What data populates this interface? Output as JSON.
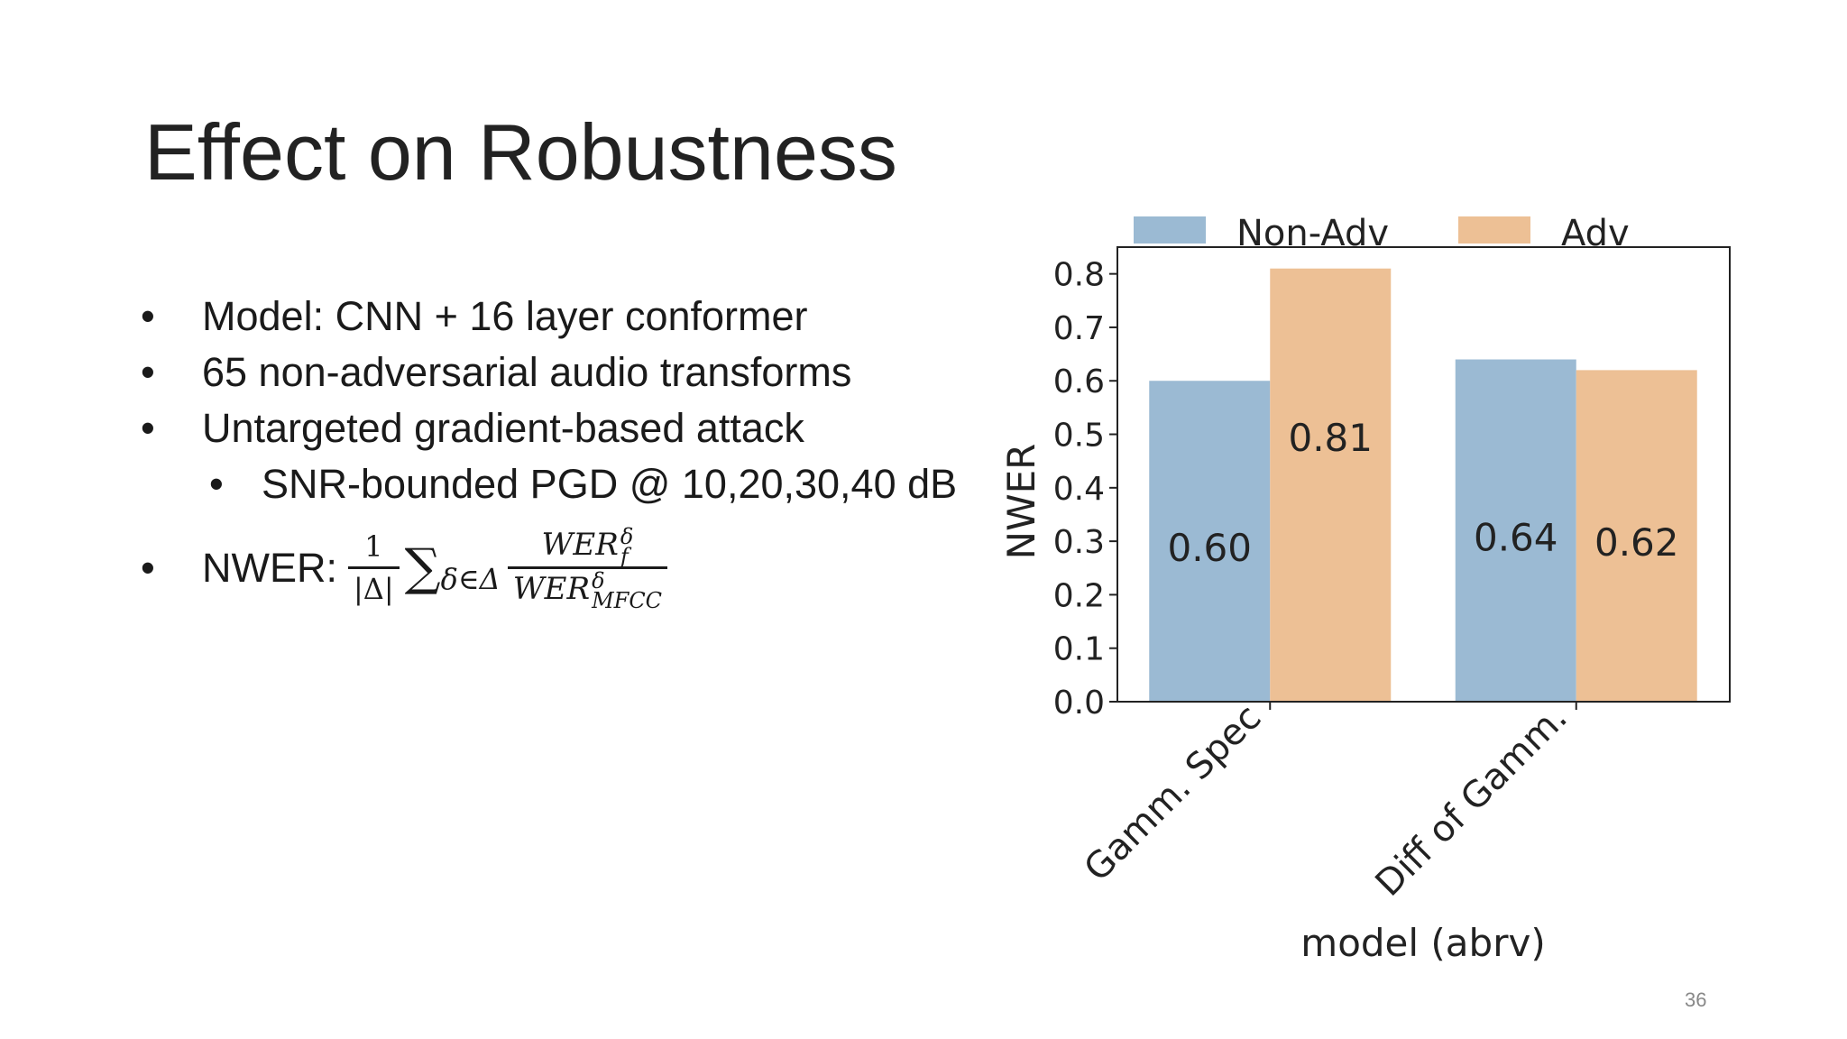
{
  "slide": {
    "title": "Effect on Robustness",
    "page_number": "36"
  },
  "bullets": [
    {
      "text": "Model: CNN + 16 layer conformer"
    },
    {
      "text": "65 non-adversarial audio transforms"
    },
    {
      "text": "Untargeted gradient-based attack"
    },
    {
      "text": "SNR-bounded PGD @ 10,20,30,40 dB"
    }
  ],
  "formula": {
    "label": "NWER:",
    "frac_num": "1",
    "frac_den": "|Δ|",
    "sigma": "∑",
    "sigma_sub": "δ∈Δ",
    "num_base": "WER",
    "num_sup": "δ",
    "num_sub": "f",
    "den_base": "WER",
    "den_sup": "δ",
    "den_sub": "MFCC"
  },
  "colors": {
    "non_adv": "#9bbad3",
    "adv": "#edc095"
  },
  "chart_data": {
    "type": "bar",
    "categories": [
      "Gamm. Spec",
      "Diff of Gamm."
    ],
    "series": [
      {
        "name": "Non-Adv",
        "values": [
          0.6,
          0.64
        ]
      },
      {
        "name": "Adv",
        "values": [
          0.81,
          0.62
        ]
      }
    ],
    "data_labels": [
      [
        "0.60",
        "0.64"
      ],
      [
        "0.81",
        "0.62"
      ]
    ],
    "title": "",
    "xlabel": "model (abrv)",
    "ylabel": "NWER",
    "ylim": [
      0,
      0.85
    ],
    "yticks": [
      "0.0",
      "0.1",
      "0.2",
      "0.3",
      "0.4",
      "0.5",
      "0.6",
      "0.7",
      "0.8"
    ],
    "ytick_values": [
      0,
      0.1,
      0.2,
      0.3,
      0.4,
      0.5,
      0.6,
      0.7,
      0.8
    ],
    "grid": false,
    "legend_placement": "top"
  }
}
